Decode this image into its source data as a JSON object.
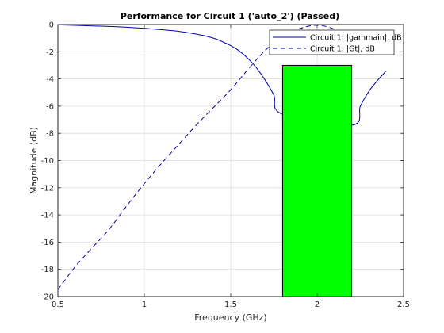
{
  "chart_data": {
    "type": "line",
    "title": "Performance for Circuit 1 ('auto_2')  (Passed)",
    "xlabel": "Frequency (GHz)",
    "ylabel": "Magnitude (dB)",
    "xlim": [
      0.5,
      2.5
    ],
    "ylim": [
      -20,
      0
    ],
    "xticks": [
      0.5,
      1,
      1.5,
      2,
      2.5
    ],
    "xtick_labels": [
      "0.5",
      "1",
      "1.5",
      "2",
      "2.5"
    ],
    "yticks": [
      0,
      -2,
      -4,
      -6,
      -8,
      -10,
      -12,
      -14,
      -16,
      -18,
      -20
    ],
    "ytick_labels": [
      "0",
      "-2",
      "-4",
      "-6",
      "-8",
      "-10",
      "-12",
      "-14",
      "-16",
      "-18",
      "-20"
    ],
    "grid": true,
    "legend_position": "top-right",
    "series": [
      {
        "name": "Circuit 1: |gammain|, dB",
        "style": "solid",
        "color": "#0000a8",
        "x": [
          0.5,
          0.6,
          0.7,
          0.8,
          0.9,
          1.0,
          1.1,
          1.2,
          1.3,
          1.4,
          1.5,
          1.55,
          1.6,
          1.65,
          1.7,
          1.75,
          1.8,
          2.2,
          2.25,
          2.3,
          2.35,
          2.4
        ],
        "y": [
          -0.02,
          -0.06,
          -0.1,
          -0.14,
          -0.2,
          -0.28,
          -0.38,
          -0.5,
          -0.7,
          -1.0,
          -1.55,
          -1.95,
          -2.5,
          -3.2,
          -4.1,
          -5.2,
          -6.6,
          -7.4,
          -6.0,
          -4.9,
          -4.1,
          -3.4
        ]
      },
      {
        "name": "Circuit 1: |Gt|, dB",
        "style": "dashed",
        "color": "#0000a8",
        "x": [
          0.5,
          0.6,
          0.7,
          0.8,
          0.9,
          1.0,
          1.1,
          1.2,
          1.3,
          1.4,
          1.5,
          1.6,
          1.7,
          1.8,
          1.9,
          2.0,
          2.1,
          2.2
        ],
        "y": [
          -19.5,
          -17.8,
          -16.4,
          -15.0,
          -13.3,
          -11.7,
          -10.2,
          -8.8,
          -7.4,
          -6.1,
          -4.8,
          -3.3,
          -1.9,
          -0.9,
          -0.3,
          -0.05,
          -0.35,
          -1.2
        ]
      }
    ],
    "bar": {
      "color": "#00ff00",
      "x_range": [
        1.8,
        2.2
      ],
      "y_range": [
        -20,
        -3
      ]
    }
  }
}
